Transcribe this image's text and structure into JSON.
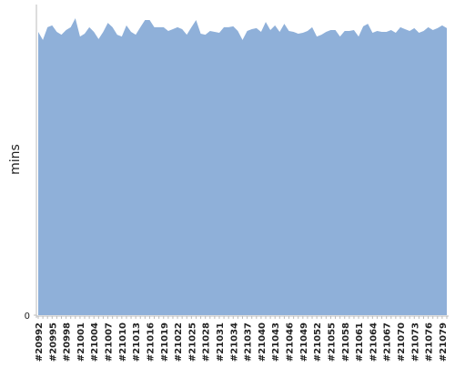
{
  "chart_data": {
    "type": "area",
    "y_label": "mins",
    "color": "#8fb0d9",
    "categories": [
      "#20992",
      null,
      null,
      "#20995",
      null,
      null,
      "#20998",
      null,
      null,
      "#21001",
      null,
      null,
      "#21004",
      null,
      null,
      "#21007",
      null,
      null,
      "#21010",
      null,
      null,
      "#21013",
      null,
      null,
      "#21016",
      null,
      null,
      "#21019",
      null,
      null,
      "#21022",
      null,
      null,
      "#21025",
      null,
      null,
      "#21028",
      null,
      null,
      "#21031",
      null,
      null,
      "#21034",
      null,
      null,
      "#21037",
      null,
      null,
      "#21040",
      null,
      null,
      "#21043",
      null,
      null,
      "#21046",
      null,
      null,
      "#21049",
      null,
      null,
      "#21052",
      null,
      null,
      "#21055",
      null,
      null,
      "#21058",
      null,
      null,
      "#21061",
      null,
      null,
      "#21064",
      null,
      null,
      "#21067",
      null,
      null,
      "#21070",
      null,
      null,
      "#21073",
      null,
      null,
      "#21076",
      null,
      null,
      "#21079",
      null
    ],
    "values": [
      91.2,
      88.6,
      92.7,
      93.3,
      91.2,
      90.3,
      91.8,
      92.7,
      95.6,
      89.7,
      90.6,
      92.7,
      91.2,
      88.9,
      91.2,
      94.1,
      92.7,
      90.3,
      89.7,
      93.3,
      91.2,
      90.3,
      92.7,
      95.0,
      95.0,
      92.7,
      92.7,
      92.7,
      91.5,
      92.1,
      92.7,
      92.1,
      90.3,
      92.7,
      95.0,
      90.6,
      90.3,
      91.5,
      91.2,
      90.9,
      92.7,
      92.7,
      93.0,
      91.5,
      88.6,
      91.5,
      92.1,
      92.4,
      91.2,
      94.4,
      91.8,
      93.3,
      91.2,
      93.8,
      91.5,
      91.2,
      90.6,
      90.9,
      91.5,
      92.7,
      89.7,
      90.3,
      91.2,
      91.8,
      91.8,
      89.7,
      91.5,
      91.5,
      91.8,
      89.7,
      93.0,
      93.8,
      90.9,
      91.5,
      91.2,
      91.2,
      91.8,
      90.9,
      92.7,
      92.1,
      91.5,
      92.4,
      90.9,
      91.5,
      92.7,
      91.8,
      92.4,
      93.3,
      92.4
    ],
    "ylim": [
      0,
      100
    ],
    "yticks": [
      0
    ]
  }
}
